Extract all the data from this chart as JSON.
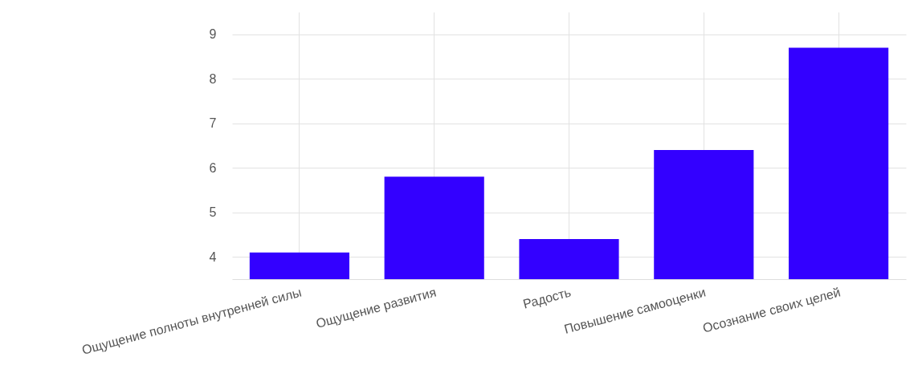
{
  "chart_data": {
    "type": "bar",
    "categories": [
      "Ощущение полноты внутренней силы",
      "Ощущение развития",
      "Радость",
      "Повышение самооценки",
      "Осознание своих целей"
    ],
    "values": [
      4.1,
      5.8,
      4.4,
      6.4,
      8.7
    ],
    "color": "#3300ff",
    "ylim": [
      3.5,
      9.5
    ],
    "yticks": [
      4,
      5,
      6,
      7,
      8,
      9
    ],
    "grid": true
  }
}
